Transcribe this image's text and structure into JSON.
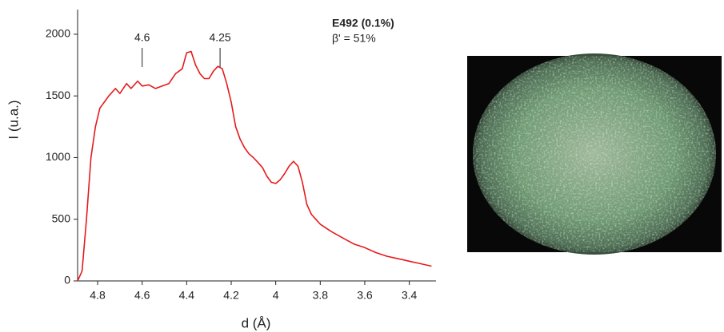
{
  "chart_data": {
    "type": "line",
    "title": "E492 (0.1%)",
    "subtitle": "β' = 51%",
    "x_label": "d (Å)",
    "y_label": "I (u.a.)",
    "xlim": [
      4.89,
      3.28
    ],
    "ylim": [
      0,
      2200
    ],
    "xticks": [
      4.8,
      4.6,
      4.4,
      4.2,
      4,
      3.8,
      3.6,
      3.4
    ],
    "yticks": [
      0,
      500,
      1000,
      1500,
      2000
    ],
    "annotations": [
      {
        "label": "4.6",
        "x": 4.6
      },
      {
        "label": "4.25",
        "x": 4.25
      }
    ],
    "series": [
      {
        "color": "#e41a1c",
        "x": [
          4.89,
          4.87,
          4.85,
          4.83,
          4.81,
          4.79,
          4.77,
          4.75,
          4.72,
          4.7,
          4.67,
          4.65,
          4.62,
          4.6,
          4.57,
          4.54,
          4.51,
          4.48,
          4.45,
          4.42,
          4.4,
          4.38,
          4.36,
          4.34,
          4.32,
          4.3,
          4.28,
          4.26,
          4.24,
          4.22,
          4.2,
          4.18,
          4.16,
          4.14,
          4.12,
          4.1,
          4.08,
          4.06,
          4.04,
          4.02,
          4,
          3.98,
          3.96,
          3.94,
          3.92,
          3.9,
          3.88,
          3.86,
          3.84,
          3.82,
          3.8,
          3.75,
          3.7,
          3.65,
          3.6,
          3.55,
          3.5,
          3.45,
          3.4,
          3.35,
          3.3
        ],
        "values": [
          0,
          80,
          500,
          1000,
          1250,
          1400,
          1450,
          1500,
          1560,
          1520,
          1600,
          1560,
          1620,
          1580,
          1590,
          1560,
          1580,
          1600,
          1680,
          1720,
          1850,
          1860,
          1750,
          1680,
          1640,
          1640,
          1700,
          1740,
          1720,
          1600,
          1450,
          1250,
          1150,
          1080,
          1030,
          1000,
          960,
          920,
          850,
          800,
          790,
          820,
          870,
          930,
          970,
          930,
          800,
          620,
          540,
          500,
          460,
          400,
          350,
          300,
          270,
          230,
          200,
          180,
          160,
          140,
          120
        ]
      }
    ]
  }
}
